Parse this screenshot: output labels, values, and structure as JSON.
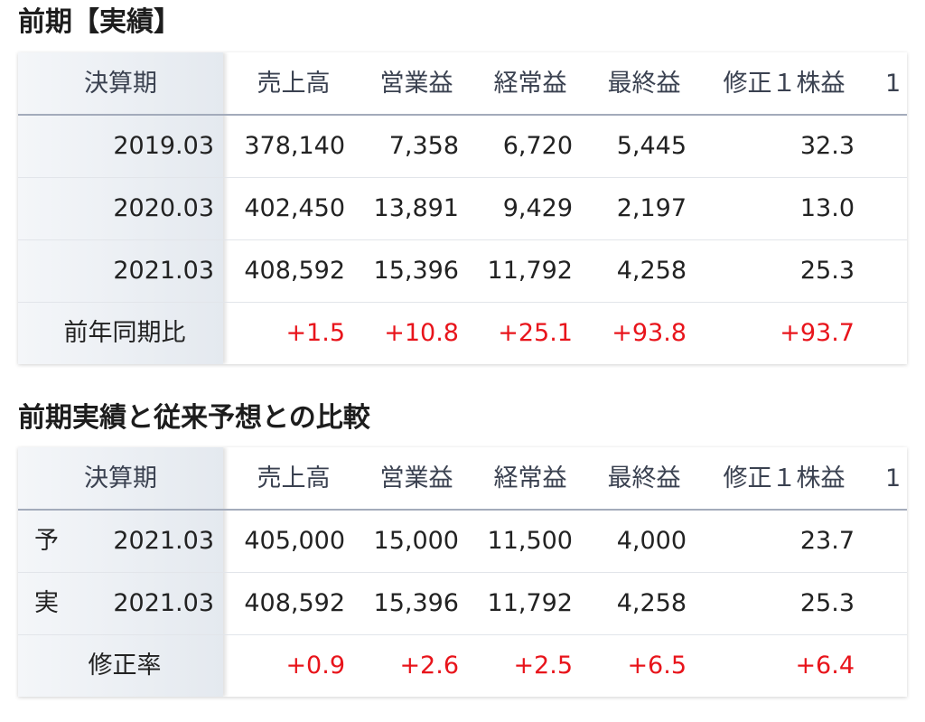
{
  "sections": [
    {
      "title": "前期【実績】",
      "header": [
        "決算期",
        "売上高",
        "営業益",
        "経常益",
        "最終益",
        "修正１株益",
        "1"
      ],
      "rows": [
        {
          "label": "2019.03",
          "cells": [
            "378,140",
            "7,358",
            "6,720",
            "5,445",
            "32.3"
          ]
        },
        {
          "label": "2020.03",
          "cells": [
            "402,450",
            "13,891",
            "9,429",
            "2,197",
            "13.0"
          ]
        },
        {
          "label": "2021.03",
          "cells": [
            "408,592",
            "15,396",
            "11,792",
            "4,258",
            "25.3"
          ]
        }
      ],
      "change_row": {
        "label": "前年同期比",
        "cells": [
          "+1.5",
          "+10.8",
          "+25.1",
          "+93.8",
          "+93.7"
        ]
      }
    },
    {
      "title": "前期実績と従来予想との比較",
      "header": [
        "決算期",
        "売上高",
        "営業益",
        "経常益",
        "最終益",
        "修正１株益",
        "1"
      ],
      "rows": [
        {
          "mark": "予",
          "label": "2021.03",
          "cells": [
            "405,000",
            "15,000",
            "11,500",
            "4,000",
            "23.7"
          ]
        },
        {
          "mark": "実",
          "label": "2021.03",
          "cells": [
            "408,592",
            "15,396",
            "11,792",
            "4,258",
            "25.3"
          ]
        }
      ],
      "change_row": {
        "label": "修正率",
        "cells": [
          "+0.9",
          "+2.6",
          "+2.5",
          "+6.5",
          "+6.4"
        ]
      }
    }
  ]
}
